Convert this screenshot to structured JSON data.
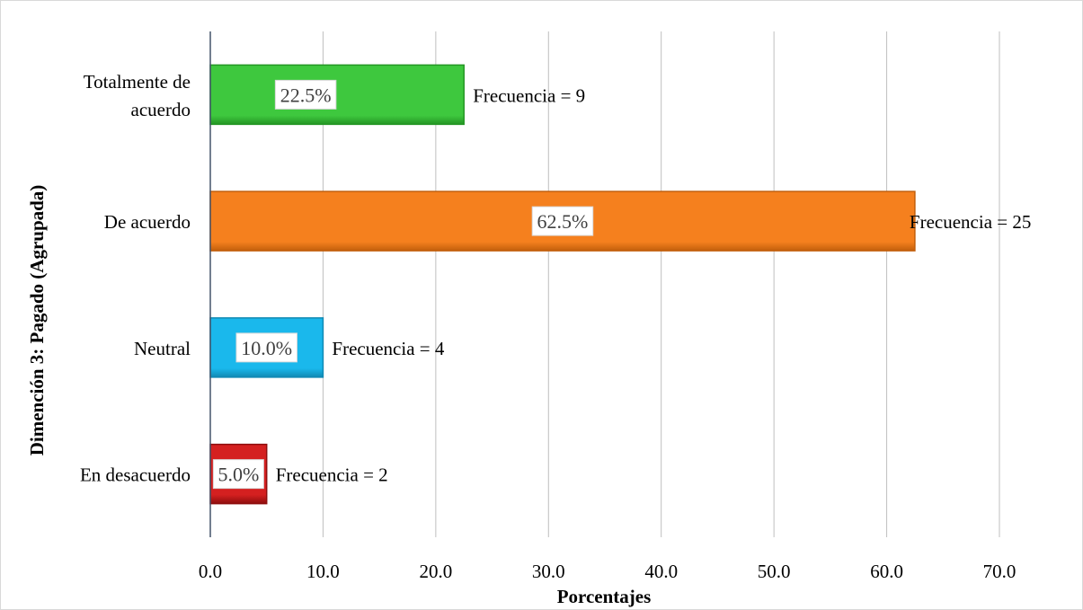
{
  "chart_data": {
    "type": "bar",
    "orientation": "horizontal",
    "categories": [
      "Totalmente de acuerdo",
      "De acuerdo",
      "Neutral",
      "En desacuerdo"
    ],
    "category_lines": [
      [
        "Totalmente de",
        "acuerdo"
      ],
      [
        "De acuerdo"
      ],
      [
        "Neutral"
      ],
      [
        "En desacuerdo"
      ]
    ],
    "values": [
      22.5,
      62.5,
      10.0,
      5.0
    ],
    "value_labels": [
      "22.5%",
      "62.5%",
      "10.0%",
      "5.0%"
    ],
    "frequency_labels": [
      "Frecuencia = 9",
      "Frecuencia = 25",
      "Frecuencia = 4",
      "Frecuencia = 2"
    ],
    "colors": [
      "#3ec83e",
      "#f5801e",
      "#1ab8ec",
      "#d42020"
    ],
    "edge_colors": [
      "#249624",
      "#c25f0c",
      "#1089b3",
      "#8e0e0e"
    ],
    "xlabel": "Porcentajes",
    "ylabel": "Dimención 3: Pagado (Agrupada)",
    "xlim": [
      0,
      70
    ],
    "xticks": [
      "0.0",
      "10.0",
      "20.0",
      "30.0",
      "40.0",
      "50.0",
      "60.0",
      "70.0"
    ],
    "grid": true,
    "legend": "none"
  }
}
